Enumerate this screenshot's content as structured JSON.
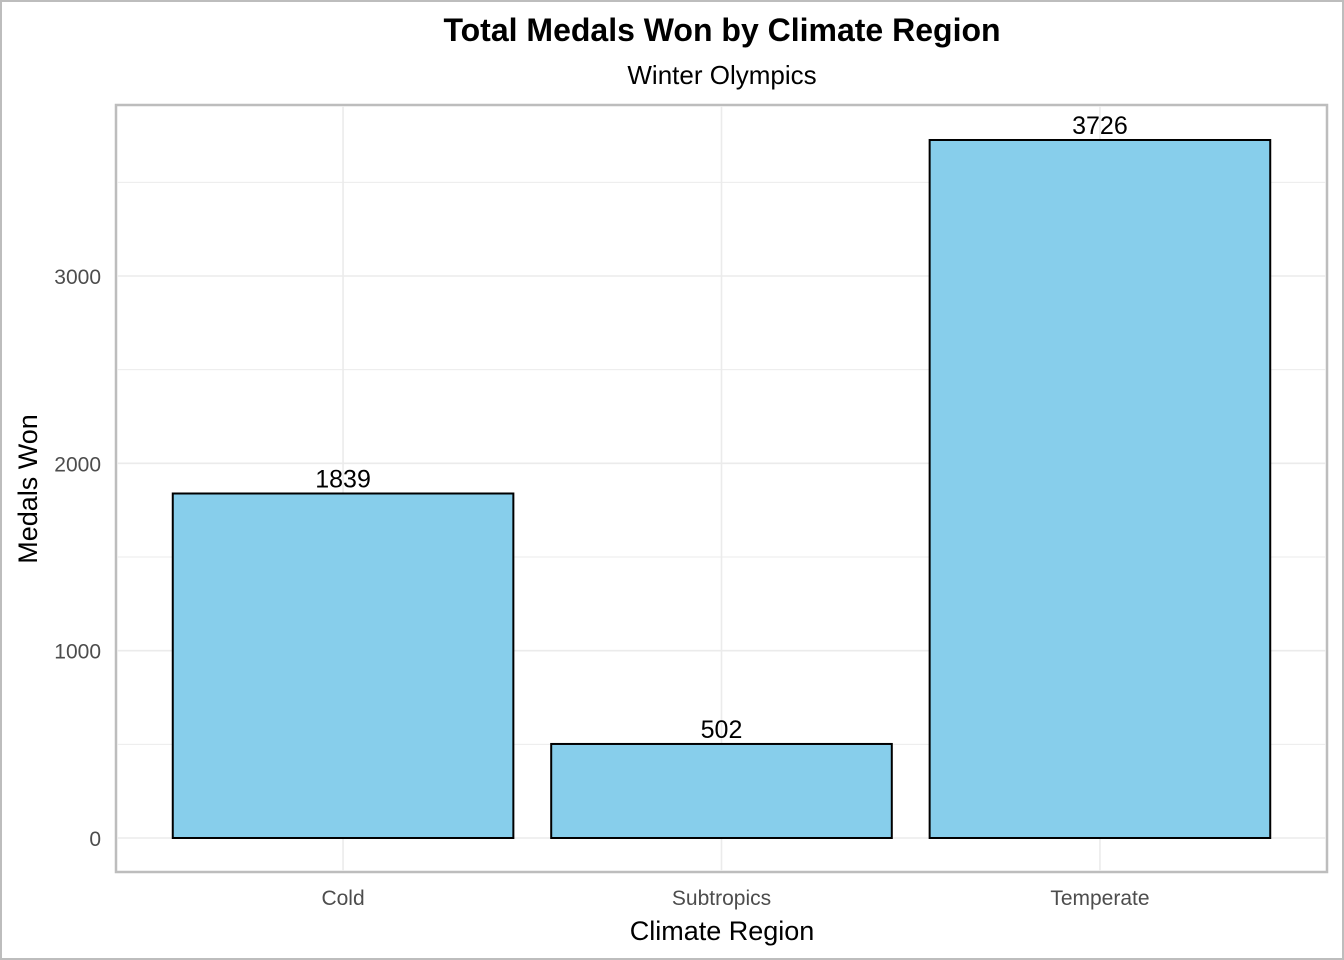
{
  "chart_data": {
    "type": "bar",
    "title": "Total Medals Won by Climate Region",
    "subtitle": "Winter Olympics",
    "xlabel": "Climate Region",
    "ylabel": "Medals Won",
    "categories": [
      "Cold",
      "Subtropics",
      "Temperate"
    ],
    "values": [
      1839,
      502,
      3726
    ],
    "data_labels": [
      "1839",
      "502",
      "3726"
    ],
    "yticks": [
      0,
      1000,
      2000,
      3000
    ],
    "ytick_labels": [
      "0",
      "1000",
      "2000",
      "3000"
    ],
    "ylim": [
      -180,
      3906
    ],
    "grid": true,
    "legend": "none",
    "colors": {
      "bar_fill": "#87CEEB",
      "bar_stroke": "#000000",
      "grid": "#ebebeb",
      "panel_border": "#bdbdbd"
    }
  }
}
